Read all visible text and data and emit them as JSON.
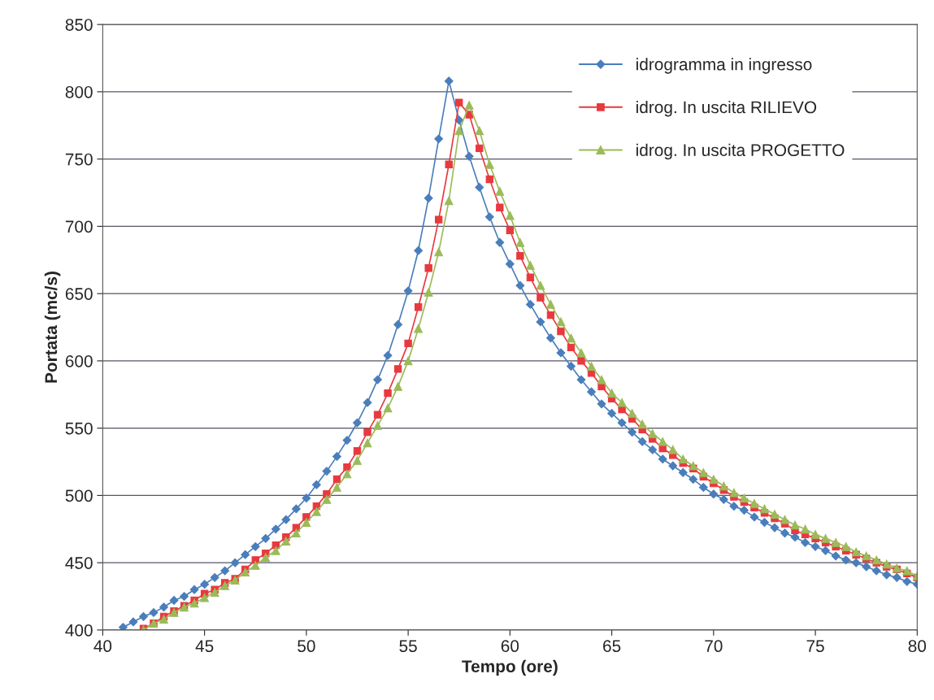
{
  "chart_data": {
    "type": "line",
    "xlabel": "Tempo (ore)",
    "ylabel": "Portata (mc/s)",
    "xlim": [
      40,
      80
    ],
    "xticks": [
      40,
      45,
      50,
      55,
      60,
      65,
      70,
      75,
      80
    ],
    "ylim": [
      400,
      850
    ],
    "yticks": [
      400,
      450,
      500,
      550,
      600,
      650,
      700,
      750,
      800,
      850
    ],
    "grid": "y",
    "legend": "top right",
    "line_style": "solid",
    "series": [
      {
        "name": "idrogramma in ingresso",
        "color": "#4a7ebb",
        "marker": "diamond",
        "x": [
          41,
          41.5,
          42,
          42.5,
          43,
          43.5,
          44,
          44.5,
          45,
          45.5,
          46,
          46.5,
          47,
          47.5,
          48,
          48.5,
          49,
          49.5,
          50,
          50.5,
          51,
          51.5,
          52,
          52.5,
          53,
          53.5,
          54,
          54.5,
          55,
          55.5,
          56,
          56.5,
          57,
          57.5,
          58,
          58.5,
          59,
          59.5,
          60,
          60.5,
          61,
          61.5,
          62,
          62.5,
          63,
          63.5,
          64,
          64.5,
          65,
          65.5,
          66,
          66.5,
          67,
          67.5,
          68,
          68.5,
          69,
          69.5,
          70,
          70.5,
          71,
          71.5,
          72,
          72.5,
          73,
          73.5,
          74,
          74.5,
          75,
          75.5,
          76,
          76.5,
          77,
          77.5,
          78,
          78.5,
          79,
          79.5,
          80
        ],
        "values": [
          402,
          406,
          410,
          413,
          417,
          422,
          425,
          430,
          434,
          439,
          444,
          450,
          456,
          462,
          468,
          475,
          482,
          490,
          498,
          508,
          518,
          529,
          541,
          554,
          569,
          586,
          604,
          627,
          652,
          682,
          721,
          765,
          808,
          779,
          752,
          729,
          707,
          688,
          672,
          656,
          642,
          629,
          617,
          606,
          596,
          586,
          577,
          568,
          561,
          554,
          547,
          540,
          534,
          527,
          522,
          517,
          512,
          506,
          501,
          497,
          492,
          489,
          484,
          480,
          476,
          472,
          469,
          465,
          462,
          459,
          455,
          452,
          450,
          447,
          444,
          441,
          439,
          436,
          434
        ]
      },
      {
        "name": "idrog. In uscita RILIEVO",
        "color": "#e8393f",
        "marker": "square",
        "x": [
          42,
          42.5,
          43,
          43.5,
          44,
          44.5,
          45,
          45.5,
          46,
          46.5,
          47,
          47.5,
          48,
          48.5,
          49,
          49.5,
          50,
          50.5,
          51,
          51.5,
          52,
          52.5,
          53,
          53.5,
          54,
          54.5,
          55,
          55.5,
          56,
          56.5,
          57,
          57.5,
          58,
          58.5,
          59,
          59.5,
          60,
          60.5,
          61,
          61.5,
          62,
          62.5,
          63,
          63.5,
          64,
          64.5,
          65,
          65.5,
          66,
          66.5,
          67,
          67.5,
          68,
          68.5,
          69,
          69.5,
          70,
          70.5,
          71,
          71.5,
          72,
          72.5,
          73,
          73.5,
          74,
          74.5,
          75,
          75.5,
          76,
          76.5,
          77,
          77.5,
          78,
          78.5,
          79,
          79.5,
          80
        ],
        "values": [
          401,
          405,
          410,
          414,
          418,
          422,
          427,
          430,
          435,
          438,
          445,
          452,
          457,
          463,
          469,
          476,
          484,
          492,
          501,
          512,
          521,
          533,
          547,
          560,
          576,
          594,
          613,
          640,
          669,
          705,
          746,
          792,
          783,
          758,
          735,
          714,
          697,
          678,
          662,
          647,
          634,
          622,
          610,
          600,
          591,
          581,
          572,
          564,
          557,
          549,
          542,
          535,
          530,
          524,
          520,
          514,
          509,
          504,
          499,
          495,
          491,
          487,
          483,
          479,
          474,
          471,
          468,
          465,
          462,
          459,
          456,
          453,
          450,
          447,
          445,
          442,
          439
        ]
      },
      {
        "name": "idrog. In uscita PROGETTO",
        "color": "#9bbb59",
        "marker": "triangle",
        "x": [
          42,
          42.5,
          43,
          43.5,
          44,
          44.5,
          45,
          45.5,
          46,
          46.5,
          47,
          47.5,
          48,
          48.5,
          49,
          49.5,
          50,
          50.5,
          51,
          51.5,
          52,
          52.5,
          53,
          53.5,
          54,
          54.5,
          55,
          55.5,
          56,
          56.5,
          57,
          57.5,
          58,
          58.5,
          59,
          59.5,
          60,
          60.5,
          61,
          61.5,
          62,
          62.5,
          63,
          63.5,
          64,
          64.5,
          65,
          65.5,
          66,
          66.5,
          67,
          67.5,
          68,
          68.5,
          69,
          69.5,
          70,
          70.5,
          71,
          71.5,
          72,
          72.5,
          73,
          73.5,
          74,
          74.5,
          75,
          75.5,
          76,
          76.5,
          77,
          77.5,
          78,
          78.5,
          79,
          79.5,
          80
        ],
        "values": [
          400,
          405,
          408,
          413,
          417,
          420,
          424,
          428,
          433,
          437,
          443,
          448,
          454,
          459,
          466,
          472,
          480,
          488,
          497,
          506,
          516,
          526,
          539,
          552,
          565,
          581,
          600,
          624,
          651,
          681,
          719,
          771,
          790,
          771,
          746,
          726,
          708,
          688,
          671,
          656,
          642,
          629,
          617,
          606,
          596,
          586,
          576,
          569,
          561,
          553,
          546,
          540,
          534,
          527,
          522,
          517,
          512,
          507,
          502,
          498,
          494,
          490,
          486,
          482,
          478,
          475,
          471,
          468,
          465,
          462,
          458,
          455,
          452,
          449,
          446,
          444,
          440
        ]
      }
    ]
  }
}
